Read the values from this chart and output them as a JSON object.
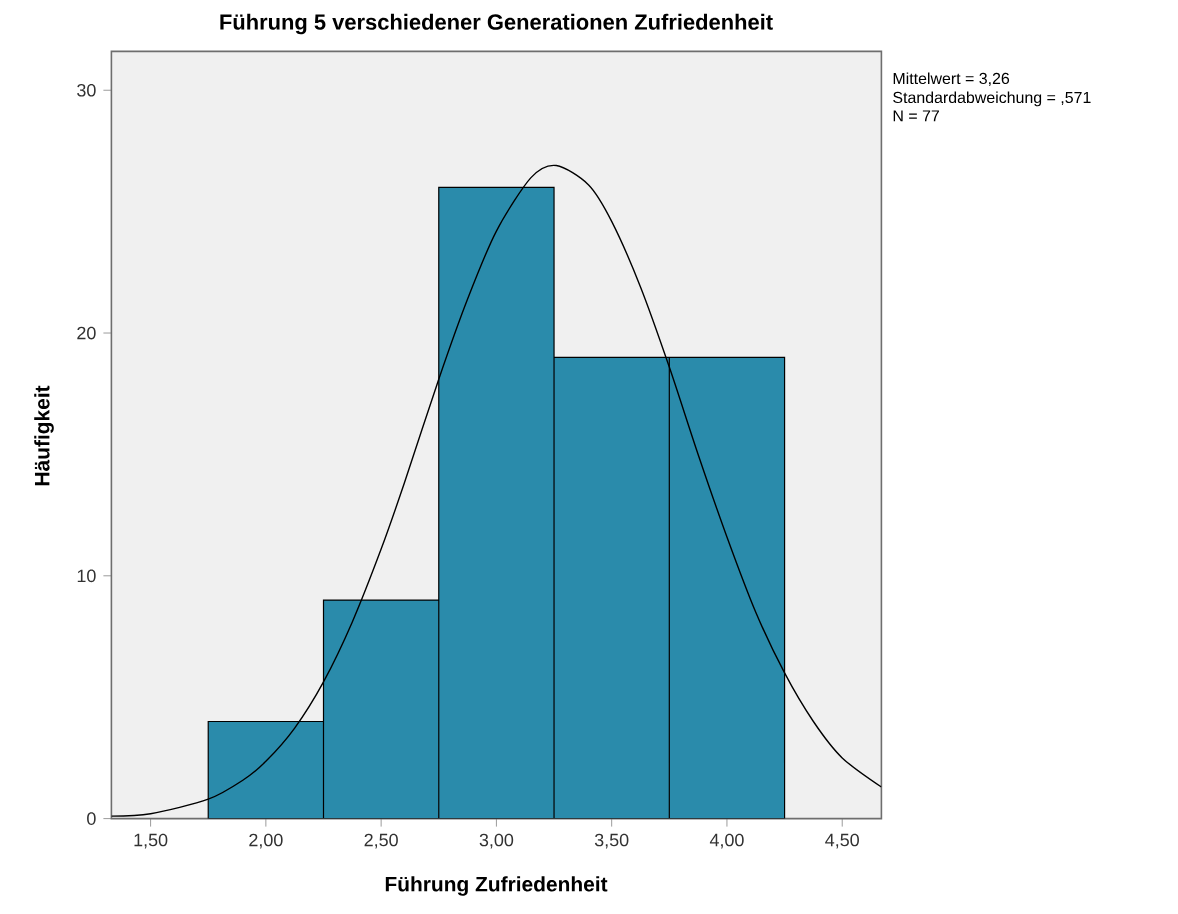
{
  "chart_data": {
    "type": "histogram",
    "title": "Führung 5 verschiedener Generationen Zufriedenheit",
    "xlabel": "Führung Zufriedenheit",
    "ylabel": "Häufigkeit",
    "annotations": [
      "Mittelwert = 3,26",
      "Standardabweichung = ,571",
      "N = 77"
    ],
    "series": [
      {
        "bins": [
          1.75,
          2.25,
          2.75,
          3.25,
          3.75,
          4.25
        ],
        "values": [
          4,
          9,
          26,
          19,
          19
        ],
        "color": "#2a8bab"
      },
      {
        "type": "line",
        "color": "#000000",
        "x": [
          1.33,
          1.5,
          1.75,
          1.9,
          2.0,
          2.125,
          2.25,
          2.375,
          2.5,
          2.6,
          2.75,
          2.875,
          3.0,
          3.15,
          3.26,
          3.4,
          3.5,
          3.625,
          3.75,
          3.875,
          4.0,
          4.125,
          4.25,
          4.375,
          4.5,
          4.67
        ],
        "values": [
          0.1,
          0.2,
          0.8,
          1.58,
          2.36,
          3.73,
          5.63,
          8.1,
          11.1,
          13.8,
          18.1,
          21.4,
          24.2,
          26.4,
          26.9,
          26.1,
          24.6,
          21.9,
          18.6,
          15.0,
          11.6,
          8.5,
          6.0,
          4.0,
          2.5,
          1.3
        ]
      }
    ],
    "xlim": [
      1.33,
      4.67
    ],
    "ylim": [
      0,
      31.6
    ],
    "xticks": [
      {
        "value": 1.5,
        "label": "1,50"
      },
      {
        "value": 2.0,
        "label": "2,00"
      },
      {
        "value": 2.5,
        "label": "2,50"
      },
      {
        "value": 3.0,
        "label": "3,00"
      },
      {
        "value": 3.5,
        "label": "3,50"
      },
      {
        "value": 4.0,
        "label": "4,00"
      },
      {
        "value": 4.5,
        "label": "4,50"
      }
    ],
    "yticks": [
      0,
      10,
      20,
      30
    ],
    "grid": false
  }
}
